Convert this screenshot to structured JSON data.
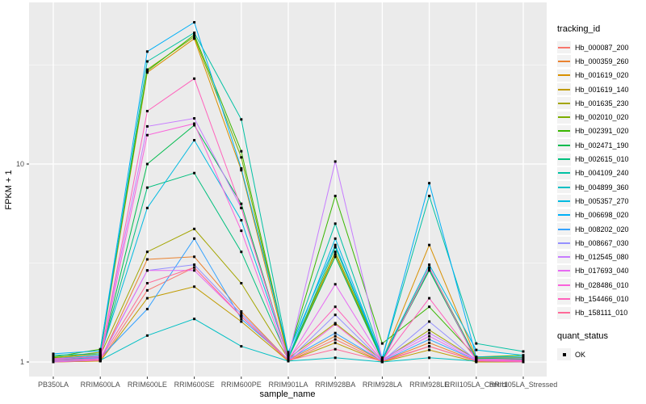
{
  "chart_data": {
    "type": "line",
    "title": "",
    "xlabel": "sample_name",
    "ylabel": "FPKM + 1",
    "y_scale": "log10",
    "y_ticks": [
      1,
      10
    ],
    "y_minor_ticks": [
      3.162,
      31.62
    ],
    "ylim_log": [
      0.074,
      1.816
    ],
    "grid": "on",
    "panel_bg": "#ebebeb",
    "grid_color": "#ffffff",
    "point_color": "#000000",
    "legend_position": "right",
    "legend_title": "tracking_id",
    "categories": [
      "PB350LA",
      "RRIM600LA",
      "RRIM600LE",
      "RRIM600SE",
      "RRIM600PE",
      "RRIM901LA",
      "RRIM928BA",
      "RRIM928LA",
      "RRIM928LE",
      "RRII105LA_Control",
      "RRII105LA_Stressed"
    ],
    "series": [
      {
        "name": "Hb_000087_200",
        "color": "#F8766D",
        "values": [
          1.0,
          1.01,
          2.3,
          3.0,
          1.7,
          1.01,
          1.3,
          1.0,
          1.2,
          1.01,
          1.0
        ]
      },
      {
        "name": "Hb_000359_260",
        "color": "#EA8331",
        "values": [
          1.01,
          1.02,
          3.3,
          3.4,
          1.8,
          1.02,
          1.35,
          1.01,
          1.25,
          1.01,
          1.01
        ]
      },
      {
        "name": "Hb_001619_020",
        "color": "#D89000",
        "values": [
          1.05,
          1.1,
          29.0,
          43.0,
          9.3,
          1.05,
          3.5,
          1.02,
          3.9,
          1.05,
          1.05
        ]
      },
      {
        "name": "Hb_001619_140",
        "color": "#C09B00",
        "values": [
          1.0,
          1.01,
          2.1,
          2.4,
          1.6,
          1.01,
          1.25,
          1.0,
          1.15,
          1.0,
          1.0
        ]
      },
      {
        "name": "Hb_001635_230",
        "color": "#A3A500",
        "values": [
          1.04,
          1.08,
          3.6,
          4.7,
          2.5,
          1.04,
          1.57,
          1.02,
          1.45,
          1.03,
          1.03
        ]
      },
      {
        "name": "Hb_002010_020",
        "color": "#7CAE00",
        "values": [
          1.05,
          1.12,
          30.0,
          44.0,
          10.8,
          1.06,
          3.6,
          1.03,
          3.0,
          1.04,
          1.05
        ]
      },
      {
        "name": "Hb_002391_020",
        "color": "#39B600",
        "values": [
          1.06,
          1.16,
          29.5,
          45.0,
          11.6,
          1.08,
          6.9,
          1.24,
          1.9,
          1.06,
          1.08
        ]
      },
      {
        "name": "Hb_002471_190",
        "color": "#00BB4E",
        "values": [
          1.02,
          1.05,
          10.0,
          15.7,
          6.3,
          1.04,
          3.4,
          1.02,
          2.9,
          1.02,
          1.03
        ]
      },
      {
        "name": "Hb_002615_010",
        "color": "#00BF7D",
        "values": [
          1.03,
          1.06,
          7.6,
          9.0,
          3.6,
          1.04,
          3.8,
          1.03,
          2.95,
          1.04,
          1.04
        ]
      },
      {
        "name": "Hb_004109_240",
        "color": "#00C1A3",
        "values": [
          1.08,
          1.1,
          33.0,
          46.0,
          16.8,
          1.1,
          5.0,
          1.05,
          6.9,
          1.24,
          1.13
        ]
      },
      {
        "name": "Hb_004899_360",
        "color": "#00BFC4",
        "values": [
          1.01,
          1.02,
          1.36,
          1.65,
          1.2,
          1.01,
          1.05,
          1.0,
          1.05,
          1.01,
          1.0
        ]
      },
      {
        "name": "Hb_005357_270",
        "color": "#00BAE0",
        "values": [
          1.04,
          1.08,
          6.0,
          13.2,
          5.2,
          1.05,
          4.2,
          1.04,
          3.1,
          1.15,
          1.08
        ]
      },
      {
        "name": "Hb_006698_020",
        "color": "#00B0F6",
        "values": [
          1.1,
          1.14,
          37.0,
          52.0,
          9.5,
          1.12,
          3.9,
          1.05,
          8.0,
          1.06,
          1.06
        ]
      },
      {
        "name": "Hb_008202_020",
        "color": "#35A2FF",
        "values": [
          1.02,
          1.05,
          1.85,
          4.2,
          1.65,
          1.03,
          1.4,
          1.01,
          1.3,
          1.02,
          1.02
        ]
      },
      {
        "name": "Hb_008667_030",
        "color": "#9590FF",
        "values": [
          1.01,
          1.03,
          2.9,
          3.1,
          1.75,
          1.02,
          1.73,
          1.01,
          1.6,
          1.02,
          1.01
        ]
      },
      {
        "name": "Hb_012545_080",
        "color": "#C77CFF",
        "values": [
          1.03,
          1.07,
          15.5,
          17.0,
          6.0,
          1.05,
          10.3,
          1.03,
          1.4,
          1.03,
          1.04
        ]
      },
      {
        "name": "Hb_017693_040",
        "color": "#E76BF3",
        "values": [
          1.02,
          1.04,
          2.9,
          2.9,
          1.7,
          1.02,
          2.47,
          1.02,
          1.35,
          1.02,
          1.02
        ]
      },
      {
        "name": "Hb_028486_010",
        "color": "#FA62DB",
        "values": [
          1.0,
          1.02,
          14.0,
          16.0,
          4.6,
          1.01,
          1.55,
          1.0,
          3.0,
          1.01,
          1.01
        ]
      },
      {
        "name": "Hb_154466_010",
        "color": "#FF62BC",
        "values": [
          1.04,
          1.06,
          18.5,
          27.0,
          6.0,
          1.04,
          1.9,
          1.02,
          2.1,
          1.03,
          1.02
        ]
      },
      {
        "name": "Hb_158111_010",
        "color": "#FF6A98",
        "values": [
          1.02,
          1.03,
          2.5,
          3.0,
          1.7,
          1.02,
          1.16,
          1.01,
          1.2,
          1.01,
          1.0
        ]
      }
    ],
    "quant_legend": {
      "title": "quant_status",
      "items": [
        {
          "label": "OK",
          "glyph": "black-square"
        }
      ]
    }
  }
}
